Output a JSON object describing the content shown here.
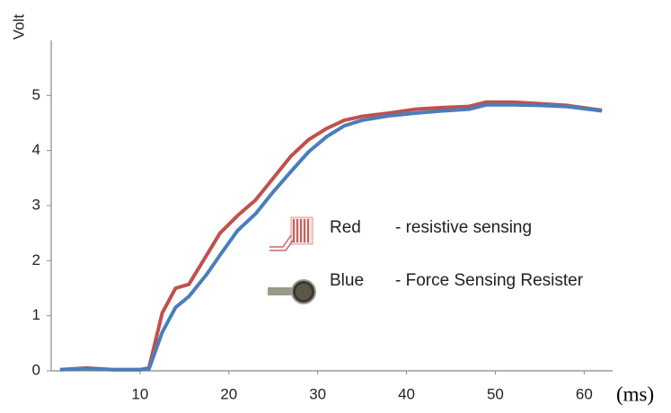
{
  "chart_data": {
    "type": "line",
    "y_label": "Volt",
    "x_unit": "(ms)",
    "x": [
      1,
      4,
      7,
      10,
      11,
      12.5,
      14,
      15.5,
      17.5,
      19,
      21,
      23,
      25,
      27,
      29,
      31,
      33,
      35,
      38,
      41,
      44,
      47,
      49,
      52,
      55,
      58,
      62
    ],
    "series": [
      {
        "name": "Red",
        "description": "- resistive sensing",
        "color": "#c0504d",
        "values": [
          0.02,
          0.05,
          0.02,
          0.02,
          0.05,
          1.05,
          1.5,
          1.57,
          2.1,
          2.5,
          2.82,
          3.1,
          3.5,
          3.9,
          4.2,
          4.4,
          4.55,
          4.62,
          4.68,
          4.75,
          4.78,
          4.8,
          4.88,
          4.88,
          4.85,
          4.82,
          4.73
        ]
      },
      {
        "name": "Blue",
        "description": "- Force Sensing Resister",
        "color": "#4a7ebb",
        "values": [
          0.02,
          0.04,
          0.02,
          0.02,
          0.03,
          0.7,
          1.15,
          1.35,
          1.75,
          2.1,
          2.55,
          2.85,
          3.25,
          3.62,
          3.98,
          4.25,
          4.45,
          4.55,
          4.63,
          4.68,
          4.72,
          4.75,
          4.83,
          4.83,
          4.82,
          4.8,
          4.72
        ]
      }
    ],
    "xlim": [
      0,
      63
    ],
    "xticks": [
      10,
      20,
      30,
      40,
      50,
      60
    ],
    "ylim": [
      0,
      6
    ],
    "yticks": [
      0,
      1,
      2,
      3,
      4,
      5
    ],
    "grid": false
  }
}
